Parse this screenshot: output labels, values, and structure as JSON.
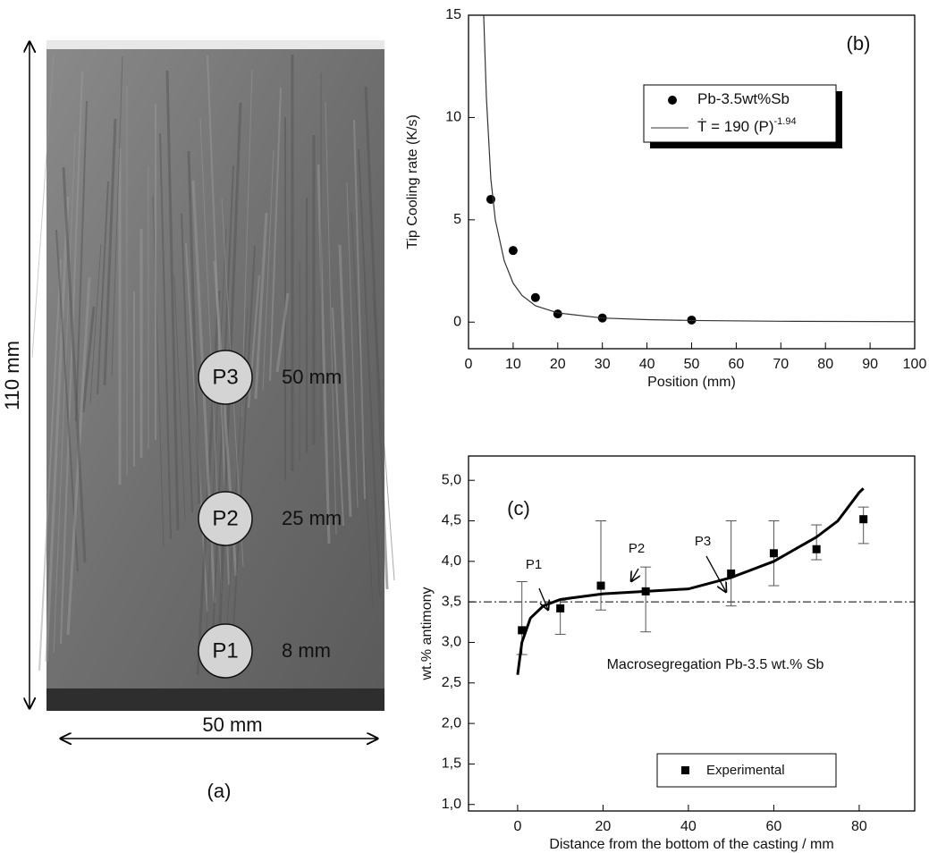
{
  "photo": {
    "label": "(a)",
    "height_label": "110 mm",
    "width_label": "50 mm",
    "positions": [
      {
        "name": "P3",
        "label": "50 mm"
      },
      {
        "name": "P2",
        "label": "25 mm"
      },
      {
        "name": "P1",
        "label": "8 mm"
      }
    ]
  },
  "chart_data": [
    {
      "type": "scatter",
      "title": "(b)",
      "x_label": "Position (mm)",
      "y_label": "Tip Cooling rate (K/s)",
      "xlim": [
        0,
        100
      ],
      "ylim": [
        -1.3,
        15
      ],
      "xticks": [
        0,
        10,
        20,
        30,
        40,
        50,
        60,
        70,
        80,
        90,
        100
      ],
      "yticks": [
        0,
        5,
        10,
        15
      ],
      "legend": "upper right",
      "series": [
        {
          "name": "Pb-3.5wt%Sb",
          "type": "scatter",
          "marker": "circle",
          "color": "#000000",
          "x": [
            5,
            10,
            15,
            20,
            30,
            50
          ],
          "values": [
            6,
            3.5,
            1.2,
            0.4,
            0.2,
            0.1
          ]
        },
        {
          "name": "Ṫ = 190 (P)",
          "name_superscript": "-1.94",
          "type": "line",
          "color": "#333333",
          "x": [
            3.4,
            4,
            5,
            6,
            8,
            10,
            12,
            15,
            20,
            30,
            40,
            50,
            70,
            100
          ],
          "values": [
            15,
            11,
            7,
            5,
            3,
            1.9,
            1.3,
            0.8,
            0.45,
            0.2,
            0.12,
            0.08,
            0.04,
            0.02
          ]
        }
      ]
    },
    {
      "type": "scatter",
      "title": "(c)",
      "x_label": "Distance from the bottom of the casting / mm",
      "y_label": "wt.% antimony",
      "xlim": [
        -11.5,
        93
      ],
      "ylim": [
        0.92,
        5.3
      ],
      "xticks": [
        0,
        20,
        40,
        60,
        80
      ],
      "yticks": [
        {
          "value": 1,
          "label": "1,0"
        },
        {
          "value": 1.5,
          "label": "1,5"
        },
        {
          "value": 2,
          "label": "2,0"
        },
        {
          "value": 2.5,
          "label": "2,5"
        },
        {
          "value": 3,
          "label": "3,0"
        },
        {
          "value": 3.5,
          "label": "3,5"
        },
        {
          "value": 4,
          "label": "4,0"
        },
        {
          "value": 4.5,
          "label": "4,5"
        },
        {
          "value": 5,
          "label": "5,0"
        }
      ],
      "reference_line": 3.5,
      "legend": "lower center",
      "annotations": [
        "P1",
        "P2",
        "P3"
      ],
      "note": "Macrosegregation Pb-3.5 wt.% Sb",
      "series": [
        {
          "name": "Experimental",
          "type": "scatter",
          "marker": "square",
          "color": "#000000",
          "x": [
            1,
            10,
            19.5,
            30,
            50,
            60,
            70,
            81
          ],
          "values": [
            3.15,
            3.42,
            3.7,
            3.63,
            3.85,
            4.1,
            4.15,
            4.52
          ],
          "error_minus": [
            0.3,
            0.32,
            0.3,
            0.5,
            0.4,
            0.4,
            0.13,
            0.3
          ],
          "error_plus": [
            0.6,
            0.1,
            0.8,
            0.3,
            0.65,
            0.4,
            0.3,
            0.15
          ]
        },
        {
          "type": "line",
          "color": "#000000",
          "x": [
            0,
            1,
            3,
            6,
            10,
            20,
            30,
            40,
            50,
            60,
            70,
            75,
            80,
            81
          ],
          "values": [
            2.6,
            3,
            3.3,
            3.45,
            3.53,
            3.6,
            3.63,
            3.66,
            3.8,
            4,
            4.3,
            4.5,
            4.85,
            4.9
          ]
        }
      ]
    }
  ]
}
